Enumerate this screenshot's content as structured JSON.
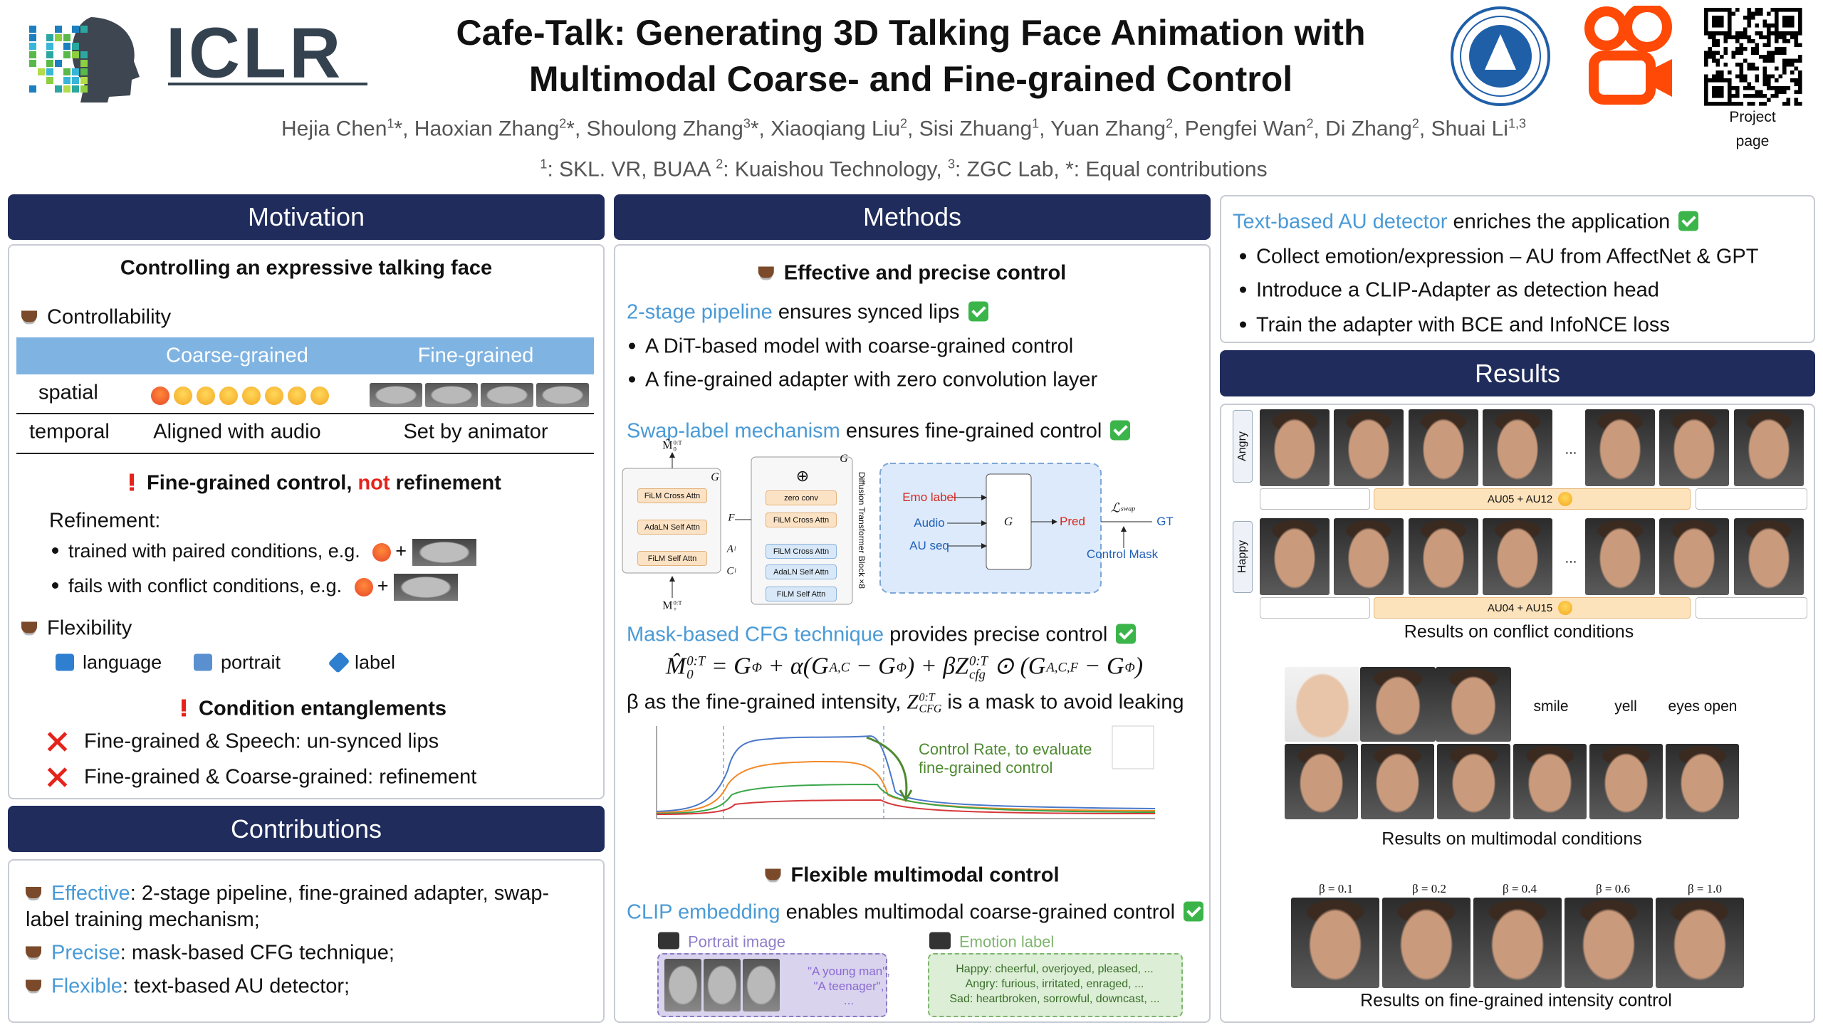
{
  "header": {
    "logo_text": "ICLR",
    "title": [
      "Cafe-Talk: Generating 3D Talking Face Animation with",
      "Multimodal Coarse- and Fine-grained Control"
    ],
    "authors": [
      {
        "name": "Hejia Chen",
        "sup": "1",
        "after": "*, "
      },
      {
        "name": "Haoxian Zhang",
        "sup": "2",
        "after": "*, "
      },
      {
        "name": "Shoulong Zhang",
        "sup": "3",
        "after": "*, "
      },
      {
        "name": "Xiaoqiang Liu",
        "sup": "2",
        "after": ", "
      },
      {
        "name": "Sisi Zhuang",
        "sup": "1",
        "after": ", "
      },
      {
        "name": "Yuan Zhang",
        "sup": "2",
        "after": ", "
      },
      {
        "name": "Pengfei Wan",
        "sup": "2",
        "after": ", "
      },
      {
        "name": "Di Zhang",
        "sup": "2",
        "after": ", "
      },
      {
        "name": "Shuai Li",
        "sup": "1,3"
      }
    ],
    "affiliations": [
      {
        "sup": "1",
        "text": ": SKL. VR, BUAA "
      },
      {
        "sup": "2",
        "text": ": Kuaishou Technology, "
      },
      {
        "sup": "3",
        "text": ": ZGC Lab, *: Equal contributions"
      }
    ],
    "project_link": [
      "Project",
      "page"
    ]
  },
  "motivation": {
    "heading": "Motivation",
    "subtitle": "Controlling an expressive talking face",
    "controllability": "Controllability",
    "table": {
      "columns": [
        "Coarse-grained",
        "Fine-grained"
      ],
      "rows": [
        {
          "label": "spatial"
        },
        {
          "label": "temporal",
          "coarse": "Aligned with audio",
          "fine": "Set by animator"
        }
      ]
    },
    "warning": {
      "before": "Fine-grained control, ",
      "highlight": "not",
      "after": " refinement"
    },
    "refinement": {
      "title": "Refinement:",
      "items": [
        {
          "text": "trained with paired conditions, e.g.",
          "plus": "+"
        },
        {
          "text": "fails with conflict conditions, e.g.",
          "plus": "+"
        }
      ]
    },
    "flexibility": {
      "title": "Flexibility",
      "items": [
        "language",
        "portrait",
        "label"
      ]
    },
    "entanglements": {
      "title": "Condition entanglements",
      "items": [
        "Fine-grained & Speech: un-synced lips",
        "Fine-grained & Coarse-grained: refinement"
      ]
    }
  },
  "contributions": {
    "heading": "Contributions",
    "items": [
      {
        "key": "Effective",
        "text": ": 2-stage pipeline, fine-grained adapter, swap-label training mechanism;"
      },
      {
        "key": "Precise",
        "text": ": mask-based CFG technique;"
      },
      {
        "key": "Flexible",
        "text": ": text-based AU detector;"
      }
    ]
  },
  "methods": {
    "heading": "Methods",
    "effective_title": "Effective and precise control",
    "pipeline": {
      "key": "2-stage pipeline",
      "text": " ensures synced lips",
      "items": [
        "A DiT-based model with coarse-grained control",
        "A fine-grained adapter with zero convolution layer"
      ]
    },
    "swap": {
      "key": "Swap-label mechanism",
      "text": " ensures fine-grained control"
    },
    "diagram": {
      "output": {
        "text": "M̂",
        "sup": "0:T",
        "sub": "0"
      },
      "target": {
        "text": "M",
        "sup": "0:T",
        "sub": "+"
      },
      "generator": "G",
      "dit_blocks": [
        "FiLM Cross Attn",
        "AdaLN Self Attn",
        "FiLM Self Attn"
      ],
      "adapter_blocks": [
        "zero conv",
        "FiLM Cross Attn",
        "FiLM Cross Attn",
        "AdaLN Self Attn",
        "FiLM Self Attn"
      ],
      "inputs": [
        {
          "text": "F"
        },
        {
          "text": "A",
          "sub": "l"
        },
        {
          "text": "C",
          "sub": "l"
        }
      ],
      "block_label": "Diffusion Transformer Block ×8",
      "swap_inputs": [
        "Emo label",
        "Audio",
        "AU seq"
      ],
      "pred": "Pred",
      "loss": {
        "text": "ℒ",
        "sub": "swap"
      },
      "gt": "GT",
      "mask": "Control Mask"
    },
    "cfg": {
      "key": "Mask-based CFG technique",
      "text": " provides precise control"
    },
    "equation": [
      {
        "text": "M̂",
        "sup": "0:T",
        "sub": "0"
      },
      {
        "text": " = G",
        "sub": "Φ"
      },
      {
        "text": " + α(G",
        "sub": "A,C"
      },
      {
        "text": " − G",
        "sub": "Φ"
      },
      {
        "text": ") + βZ",
        "sup": "0:T",
        "sub": "cfg"
      },
      {
        "text": " ⊙ (G",
        "sub": "A,C,F"
      },
      {
        "text": " − G",
        "sub": "Φ"
      },
      {
        "text": ")"
      }
    ],
    "intensity": {
      "before": "β as the fine-grained intensity, ",
      "symbol": {
        "text": "Z",
        "sup": "0:T",
        "sub": "CFG"
      },
      "after": " is a mask to avoid leaking"
    },
    "chart_note": [
      "Control Rate, to evaluate",
      "fine-grained control"
    ],
    "multimodal_title": "Flexible multimodal control",
    "clip": {
      "key": "CLIP embedding",
      "text": " enables multimodal coarse-grained control"
    },
    "portrait": {
      "label": "Portrait image",
      "texts": [
        "\"A young man\",",
        "\"A teenager\",",
        "..."
      ]
    },
    "emotion": {
      "label": "Emotion label",
      "texts": [
        "Happy: cheerful, overjoyed, pleased, ...",
        "Angry: furious, irritated, enraged, ...",
        "Sad: heartbroken, sorrowful, downcast, ..."
      ]
    }
  },
  "au_detector": {
    "key": "Text-based AU detector",
    "text": " enriches the application",
    "items": [
      "Collect emotion/expression – AU from AffectNet & GPT",
      "Introduce a CLIP-Adapter as detection head",
      "Train the adapter with BCE and InfoNCE loss"
    ]
  },
  "results": {
    "heading": "Results",
    "conflict": {
      "rows": [
        {
          "label": "Angry",
          "au": "AU05 + AU12"
        },
        {
          "label": "Happy",
          "au": "AU04 + AU15"
        }
      ],
      "ellipsis": "...",
      "caption": "Results on conflict conditions"
    },
    "multimodal": {
      "labels": [
        "smile",
        "yell",
        "eyes open"
      ],
      "caption": "Results on multimodal conditions"
    },
    "intensity": {
      "betas": [
        "β = 0.1",
        "β = 0.2",
        "β = 0.4",
        "β = 0.6",
        "β = 1.0"
      ],
      "caption": "Results on fine-grained intensity control"
    }
  }
}
